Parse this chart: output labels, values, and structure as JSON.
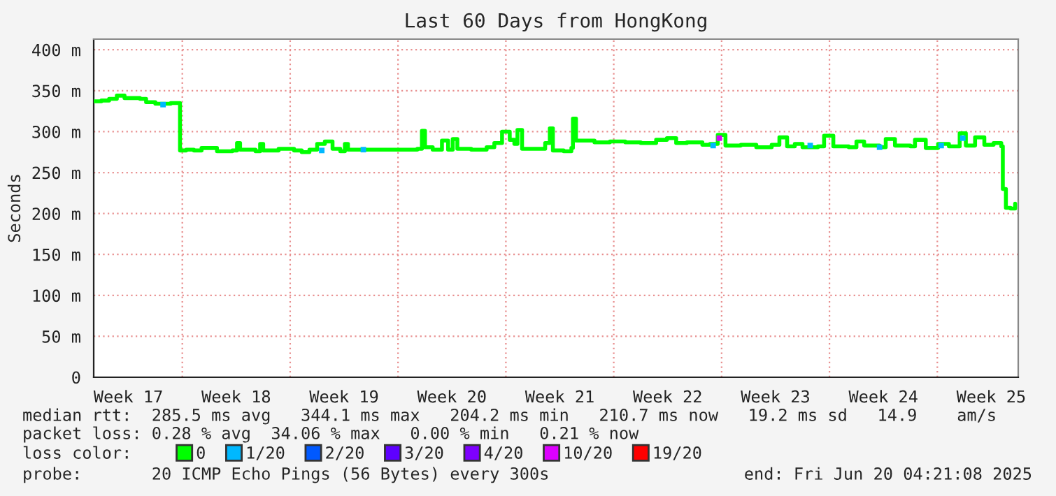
{
  "chart_data": {
    "type": "step",
    "title": "Last 60 Days from HongKong",
    "ylabel": "Seconds",
    "xlim": [
      "2025-04-22T06:00",
      "2025-06-21T06:00"
    ],
    "ylim": [
      0,
      413
    ],
    "xticks": [
      {
        "value": "2025-04-24T12:00",
        "label": "Week 17"
      },
      {
        "value": "2025-04-28",
        "label": null
      },
      {
        "value": "2025-05-01T12:00",
        "label": "Week 18"
      },
      {
        "value": "2025-05-05",
        "label": null
      },
      {
        "value": "2025-05-08T12:00",
        "label": "Week 19"
      },
      {
        "value": "2025-05-12",
        "label": null
      },
      {
        "value": "2025-05-15T12:00",
        "label": "Week 20"
      },
      {
        "value": "2025-05-19",
        "label": null
      },
      {
        "value": "2025-05-22T12:00",
        "label": "Week 21"
      },
      {
        "value": "2025-05-26",
        "label": null
      },
      {
        "value": "2025-05-29T12:00",
        "label": "Week 22"
      },
      {
        "value": "2025-06-02",
        "label": null
      },
      {
        "value": "2025-06-05T12:00",
        "label": "Week 23"
      },
      {
        "value": "2025-06-09",
        "label": null
      },
      {
        "value": "2025-06-12T12:00",
        "label": "Week 24"
      },
      {
        "value": "2025-06-16",
        "label": null
      },
      {
        "value": "2025-06-19T12:00",
        "label": "Week 25"
      }
    ],
    "yticks": [
      0,
      {
        "value": 50,
        "label": "50 m"
      },
      {
        "value": 100,
        "label": "100 m"
      },
      {
        "value": 150,
        "label": "150 m"
      },
      {
        "value": 200,
        "label": "200 m"
      },
      {
        "value": 250,
        "label": "250 m"
      },
      {
        "value": 300,
        "label": "300 m"
      },
      {
        "value": 350,
        "label": "350 m"
      },
      {
        "value": 400,
        "label": "400 m"
      }
    ],
    "grid": true,
    "legend": "bottom",
    "legend_title": "loss color:",
    "series": [
      {
        "name": "0",
        "color": "#00ff00",
        "x": [
          "2025-04-22T06:00",
          "2025-04-22T18:00",
          "2025-04-23T06:00",
          "2025-04-23T18:00",
          "2025-04-24T06:00",
          "2025-04-25T06:00",
          "2025-04-25T15:36",
          "2025-04-26T06:00",
          "2025-04-27T06:00",
          "2025-04-27T18:00",
          "2025-04-27T20:24",
          "2025-04-28T06:00",
          "2025-04-28T18:00",
          "2025-04-29T06:00",
          "2025-04-30T06:00",
          "2025-05-01T06:00",
          "2025-05-01T13:12",
          "2025-05-01T18:00",
          "2025-05-02T18:00",
          "2025-05-03T01:12",
          "2025-05-03T06:00",
          "2025-05-04T06:00",
          "2025-05-05T06:00",
          "2025-05-05T18:00",
          "2025-05-06T06:00",
          "2025-05-06T18:00",
          "2025-05-07T06:00",
          "2025-05-07T18:00",
          "2025-05-08T06:00",
          "2025-05-08T13:12",
          "2025-05-08T18:00",
          "2025-05-10T06:00",
          "2025-05-12T06:00",
          "2025-05-13T06:00",
          "2025-05-13T13:12",
          "2025-05-13T18:00",
          "2025-05-14T06:00",
          "2025-05-14T20:24",
          "2025-05-15T06:00",
          "2025-05-15T13:12",
          "2025-05-15T20:24",
          "2025-05-16T18:00",
          "2025-05-17T18:00",
          "2025-05-18T06:00",
          "2025-05-18T18:00",
          "2025-05-19T06:00",
          "2025-05-19T13:12",
          "2025-05-19T18:00",
          "2025-05-20T01:12",
          "2025-05-20T18:00",
          "2025-05-21T13:12",
          "2025-05-21T20:24",
          "2025-05-22T01:12",
          "2025-05-22T18:00",
          "2025-05-23T06:00",
          "2025-05-23T08:24",
          "2025-05-23T13:12",
          "2025-05-24T18:00",
          "2025-05-25T18:00",
          "2025-05-26T18:00",
          "2025-05-27T18:00",
          "2025-05-28T18:00",
          "2025-05-29T10:48",
          "2025-05-30T01:12",
          "2025-05-30T18:00",
          "2025-05-31T18:00",
          "2025-06-01T06:00",
          "2025-06-01T18:00",
          "2025-06-02T06:00",
          "2025-06-03T06:00",
          "2025-06-04T06:00",
          "2025-06-05T06:00",
          "2025-06-05T18:00",
          "2025-06-06T06:00",
          "2025-06-06T18:00",
          "2025-06-07T06:00",
          "2025-06-08T06:00",
          "2025-06-08T15:36",
          "2025-06-09T06:00",
          "2025-06-10T06:00",
          "2025-06-10T18:00",
          "2025-06-11T06:00",
          "2025-06-12T06:00",
          "2025-06-12T15:36",
          "2025-06-13T06:00",
          "2025-06-14T06:00",
          "2025-06-14T13:12",
          "2025-06-15T06:00",
          "2025-06-16T01:12",
          "2025-06-16T18:00",
          "2025-06-17T10:48",
          "2025-06-17T20:24",
          "2025-06-18T10:48",
          "2025-06-19T01:12",
          "2025-06-19T15:36",
          "2025-06-20T03:36",
          "2025-06-20T06:00",
          "2025-06-20T10:48",
          "2025-06-20T18:00",
          "2025-06-21T01:12"
        ],
        "values": [
          337,
          338,
          340,
          344,
          341,
          340,
          336,
          334,
          335,
          335,
          277,
          278,
          277,
          280,
          276,
          277,
          286,
          278,
          276,
          285,
          277,
          279,
          277,
          275,
          278,
          285,
          288,
          279,
          276,
          285,
          278,
          278,
          278,
          279,
          301,
          281,
          278,
          289,
          278,
          291,
          279,
          278,
          281,
          286,
          300,
          290,
          285,
          302,
          279,
          279,
          286,
          304,
          277,
          276,
          280,
          316,
          289,
          287,
          288,
          287,
          286,
          290,
          292,
          286,
          287,
          284,
          285,
          296,
          283,
          284,
          281,
          284,
          293,
          282,
          285,
          281,
          282,
          295,
          282,
          281,
          288,
          283,
          281,
          291,
          283,
          282,
          290,
          280,
          285,
          282,
          298,
          283,
          293,
          284,
          286,
          282,
          230,
          207,
          206,
          212
        ]
      },
      {
        "name": "1/20",
        "color": "#00b8ff",
        "type": "scatter",
        "x": [
          "2025-04-26T18:00",
          "2025-05-07T01:12",
          "2025-05-09T18:00",
          "2025-06-01T10:48",
          "2025-06-07T18:00",
          "2025-06-12T06:00",
          "2025-06-16T06:00",
          "2025-06-17T15:36"
        ],
        "values": [
          333,
          277,
          278,
          283,
          283,
          281,
          283,
          292
        ]
      },
      {
        "name": "2/20",
        "color": "#0059ff",
        "type": "scatter"
      },
      {
        "name": "3/20",
        "color": "#5e00ff",
        "type": "scatter"
      },
      {
        "name": "4/20",
        "color": "#7e00ff",
        "type": "scatter"
      },
      {
        "name": "10/20",
        "color": "#dd00ff",
        "type": "scatter",
        "x": [
          "2025-06-01T20:24"
        ],
        "values": [
          292
        ]
      },
      {
        "name": "19/20",
        "color": "#ff0000",
        "type": "scatter"
      }
    ],
    "annotations": [
      "median rtt:  285.5 ms avg   344.1 ms max   204.2 ms min   210.7 ms now   19.2 ms sd   14.9    am/s",
      "packet loss: 0.28 % avg  34.06 % max   0.00 % min   0.21 % now",
      "probe:       20 ICMP Echo Pings (56 Bytes) every 300s",
      "end: Fri Jun 20 04:21:08 2025"
    ]
  }
}
